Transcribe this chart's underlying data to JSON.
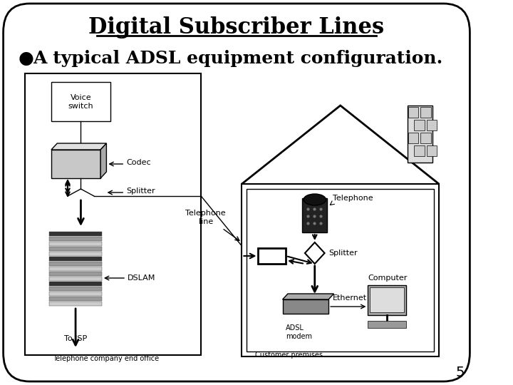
{
  "title": "Digital Subscriber Lines",
  "bullet_text": "A typical ADSL equipment configuration.",
  "page_number": "5",
  "bg_color": "#ffffff",
  "border_color": "#000000",
  "text_color": "#000000",
  "figure_size": [
    7.2,
    5.4
  ]
}
